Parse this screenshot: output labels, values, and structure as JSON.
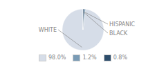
{
  "chart_data": {
    "type": "pie",
    "categories": [
      "WHITE",
      "HISPANIC",
      "BLACK"
    ],
    "values": [
      98.0,
      1.2,
      0.8
    ],
    "value_labels": [
      "98.0%",
      "1.2%",
      "0.8%"
    ],
    "colors": [
      "#d6dde8",
      "#7a9bb5",
      "#2d4d6b"
    ],
    "legend": "bottom"
  }
}
